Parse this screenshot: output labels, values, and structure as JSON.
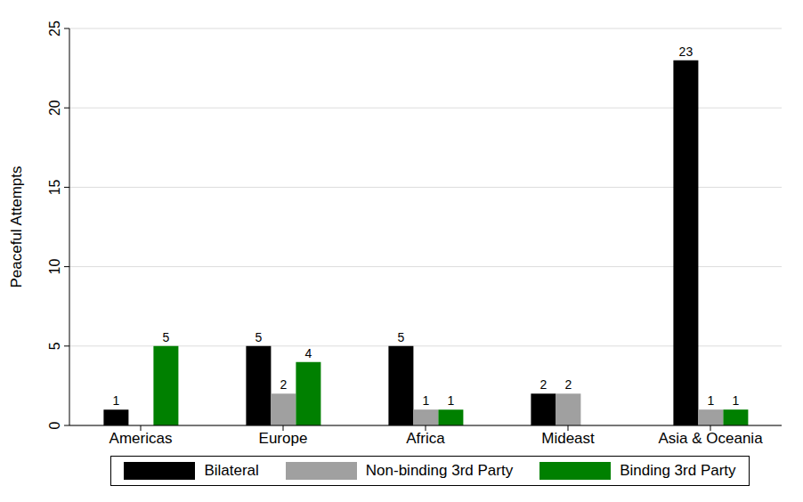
{
  "chart_data": {
    "type": "bar",
    "y_label": "Peaceful Attempts",
    "categories": [
      "Americas",
      "Europe",
      "Africa",
      "Mideast",
      "Asia & Oceania"
    ],
    "series": [
      {
        "name": "Bilateral",
        "color": "#000000",
        "values": [
          1,
          5,
          5,
          2,
          23
        ]
      },
      {
        "name": "Non-binding 3rd Party",
        "color": "#a0a0a0",
        "values": [
          0,
          2,
          1,
          2,
          1
        ]
      },
      {
        "name": "Binding 3rd Party",
        "color": "#008000",
        "values": [
          5,
          4,
          1,
          0,
          1
        ]
      }
    ],
    "ylim": [
      0,
      25
    ],
    "yticks": [
      0,
      5,
      10,
      15,
      20,
      25
    ],
    "grid": true,
    "legend": "bottom",
    "data_labels": true
  }
}
